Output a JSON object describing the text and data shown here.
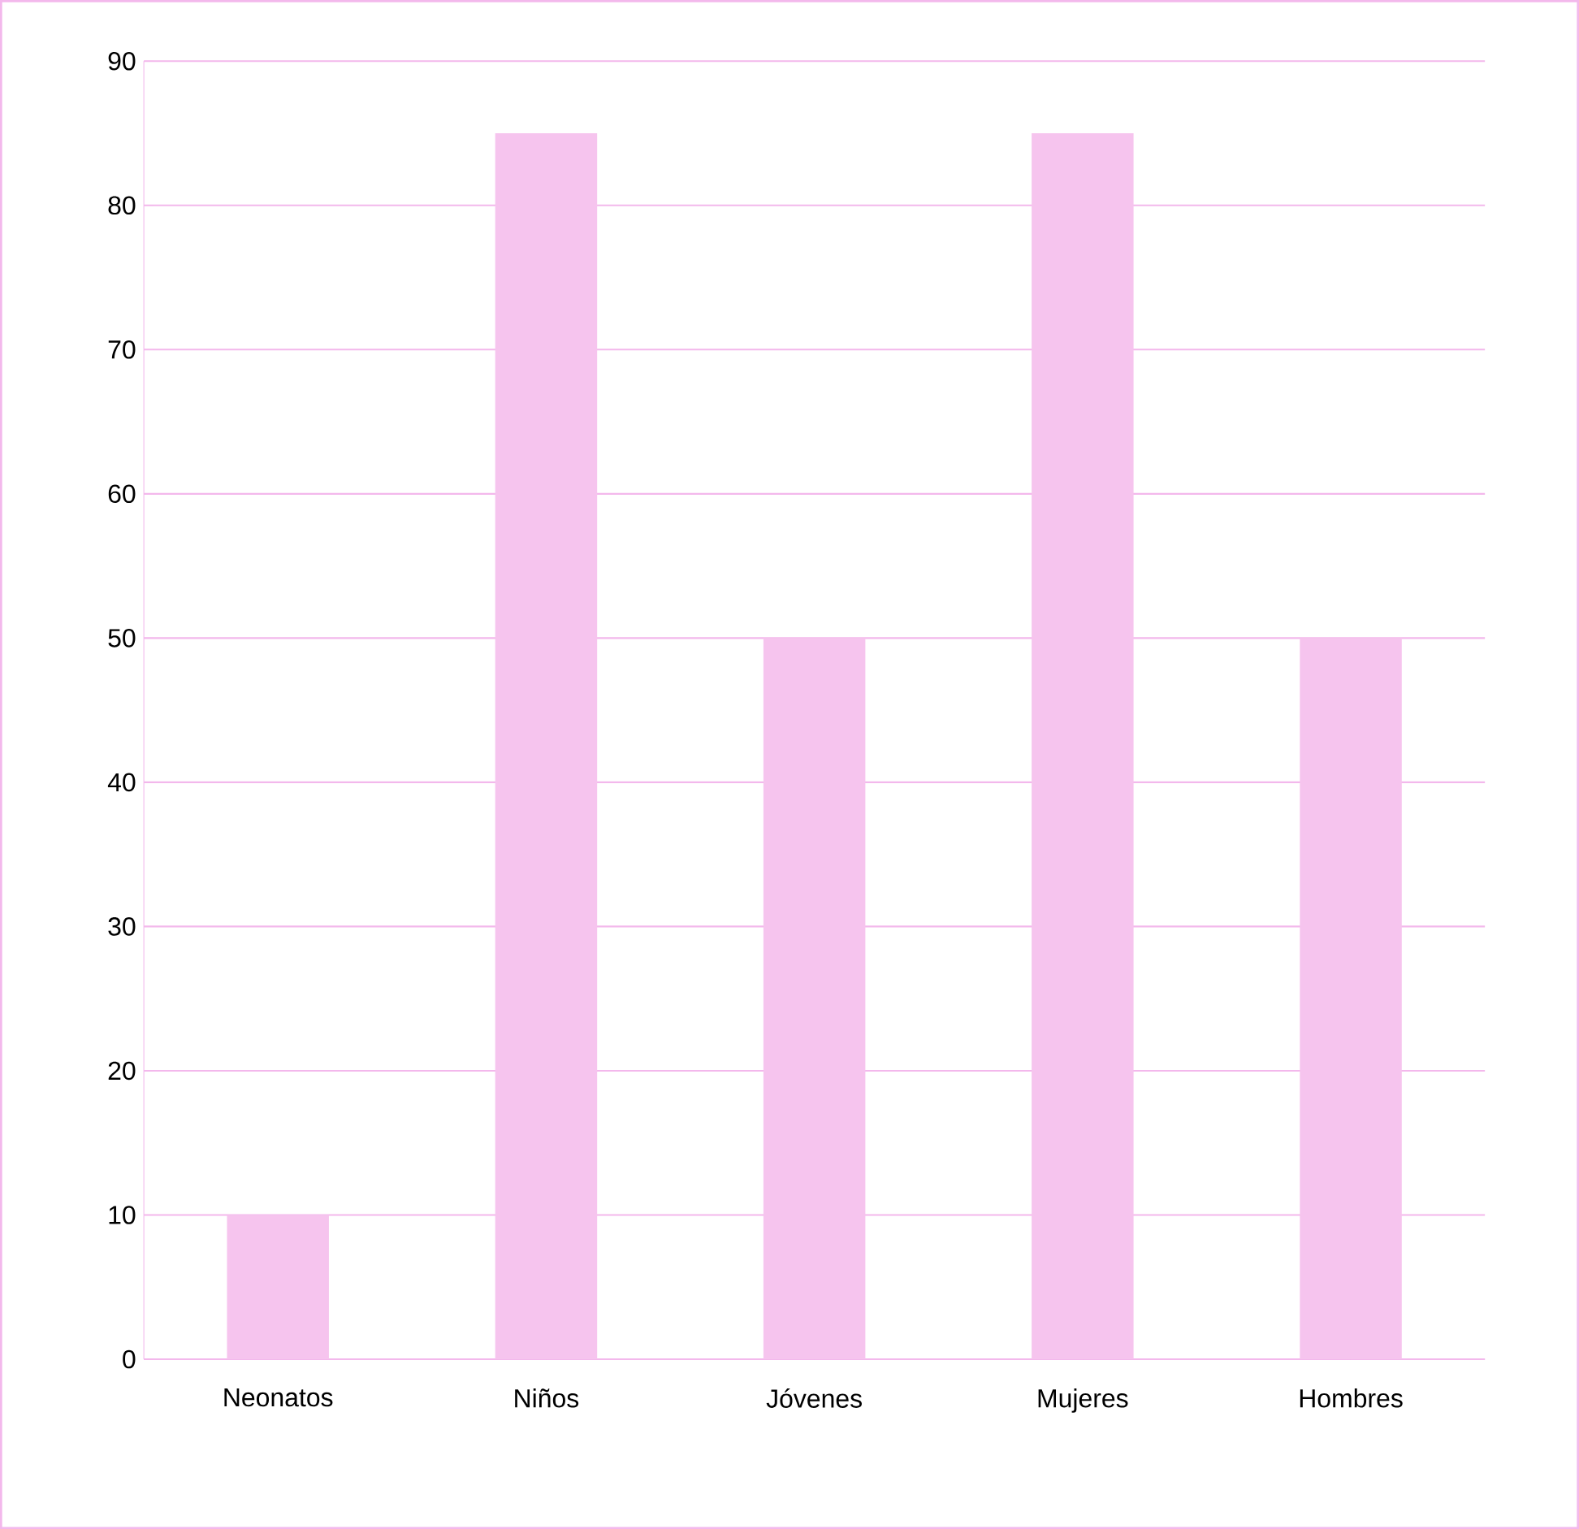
{
  "chart_data": {
    "type": "bar",
    "categories": [
      "Neonatos",
      "Niños",
      "Jóvenes",
      "Mujeres",
      "Hombres"
    ],
    "values": [
      10,
      85,
      50,
      85,
      50
    ],
    "color": "#f6c4ee",
    "ylim": [
      0,
      90
    ],
    "yticks": [
      0,
      10,
      20,
      30,
      40,
      50,
      60,
      70,
      80,
      90
    ],
    "grid": "y"
  }
}
